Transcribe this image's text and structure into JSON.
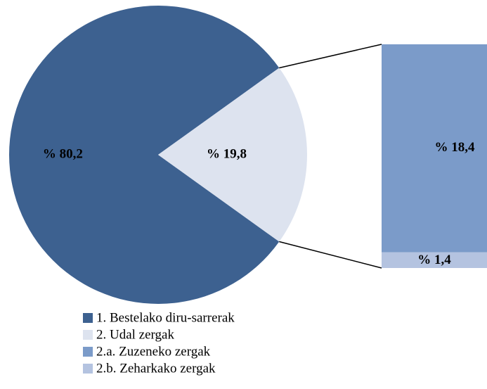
{
  "chart_data": {
    "type": "pie",
    "categories": [
      "1. Bestelako diru-sarrerak",
      "2. Udal zergak"
    ],
    "values": [
      80.2,
      19.8
    ],
    "value_labels": [
      "% 80,2",
      "% 19,8"
    ],
    "colors": [
      "#3d6190",
      "#dde3ef"
    ],
    "breakdown": {
      "categories": [
        "2.a. Zuzeneko zergak",
        "2.b. Zeharkako zergak"
      ],
      "values": [
        18.4,
        1.4
      ],
      "value_labels": [
        "% 18,4",
        "% 1,4"
      ],
      "colors": [
        "#7b9bc9",
        "#b4c3e0"
      ]
    }
  }
}
